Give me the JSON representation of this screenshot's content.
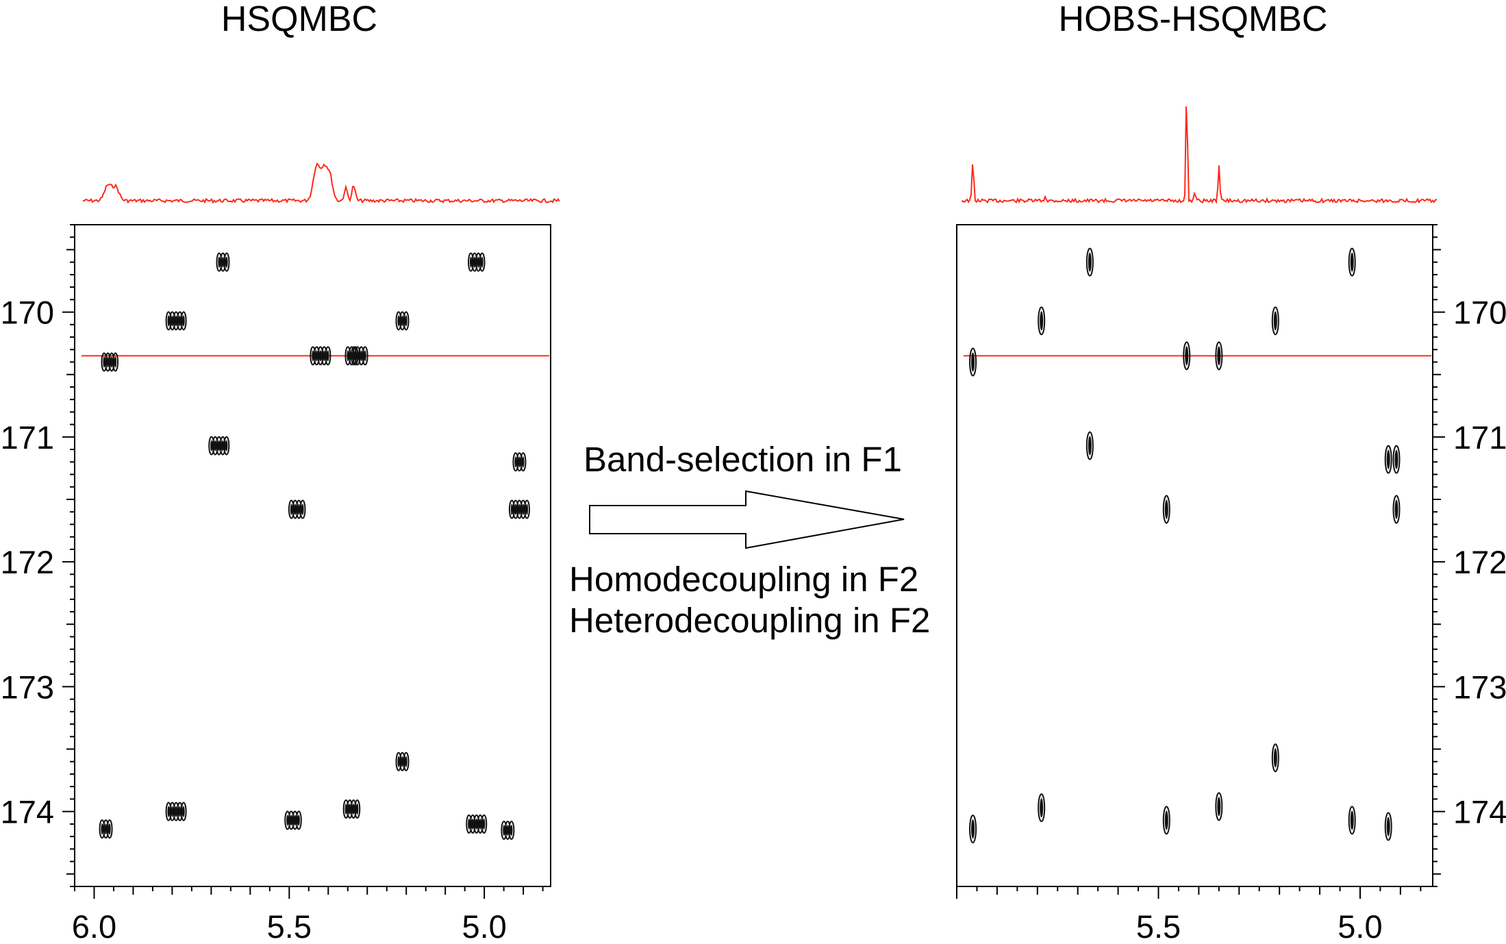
{
  "figure": {
    "left_title": "HSQMBC",
    "right_title": "HOBS-HSQMBC",
    "arrow_label_top": "Band-selection in F1",
    "arrow_label_bottom_1": "Homodecoupling in F2",
    "arrow_label_bottom_2": "Heterodecoupling in F2"
  },
  "colors": {
    "trace": "#ff2a1a",
    "peak": "#111111",
    "axis": "#000000",
    "background": "#ffffff"
  },
  "chart_data": [
    {
      "type": "scatter",
      "title": "HSQMBC",
      "xlabel": "",
      "ylabel": "",
      "xlim": [
        6.05,
        4.83
      ],
      "ylim": [
        169.3,
        174.6
      ],
      "x_ticks": [
        "6.0",
        "5.5",
        "5.0"
      ],
      "y_ticks": [
        "170",
        "171",
        "172",
        "173",
        "174"
      ],
      "slice_f1": 170.35,
      "peaks": [
        {
          "x": 5.67,
          "y": 169.6
        },
        {
          "x": 5.02,
          "y": 169.6
        },
        {
          "x": 5.79,
          "y": 170.07
        },
        {
          "x": 5.21,
          "y": 170.07
        },
        {
          "x": 5.96,
          "y": 170.4
        },
        {
          "x": 5.42,
          "y": 170.35
        },
        {
          "x": 5.34,
          "y": 170.35
        },
        {
          "x": 5.32,
          "y": 170.35
        },
        {
          "x": 5.68,
          "y": 171.07
        },
        {
          "x": 4.91,
          "y": 171.2
        },
        {
          "x": 5.48,
          "y": 171.58
        },
        {
          "x": 4.91,
          "y": 171.58
        },
        {
          "x": 5.21,
          "y": 173.6
        },
        {
          "x": 5.34,
          "y": 173.98
        },
        {
          "x": 5.79,
          "y": 174.0
        },
        {
          "x": 5.97,
          "y": 174.14
        },
        {
          "x": 5.49,
          "y": 174.07
        },
        {
          "x": 5.02,
          "y": 174.1
        },
        {
          "x": 4.94,
          "y": 174.15
        }
      ],
      "projection": "broad multiplets near 5.96, 5.42 and 5.34"
    },
    {
      "type": "scatter",
      "title": "HOBS-HSQMBC",
      "xlabel": "",
      "ylabel": "",
      "xlim": [
        6.0,
        4.82
      ],
      "ylim": [
        169.3,
        174.6
      ],
      "x_ticks": [
        "5.5",
        "5.0"
      ],
      "y_ticks": [
        "170",
        "171",
        "172",
        "173",
        "174"
      ],
      "slice_f1": 170.35,
      "peaks": [
        {
          "x": 5.67,
          "y": 169.6
        },
        {
          "x": 5.02,
          "y": 169.6
        },
        {
          "x": 5.79,
          "y": 170.07
        },
        {
          "x": 5.21,
          "y": 170.07
        },
        {
          "x": 5.96,
          "y": 170.4
        },
        {
          "x": 5.43,
          "y": 170.35
        },
        {
          "x": 5.35,
          "y": 170.35
        },
        {
          "x": 5.67,
          "y": 171.07
        },
        {
          "x": 4.93,
          "y": 171.18
        },
        {
          "x": 4.91,
          "y": 171.18
        },
        {
          "x": 5.48,
          "y": 171.58
        },
        {
          "x": 4.91,
          "y": 171.58
        },
        {
          "x": 5.21,
          "y": 173.57
        },
        {
          "x": 5.35,
          "y": 173.96
        },
        {
          "x": 5.79,
          "y": 173.97
        },
        {
          "x": 5.96,
          "y": 174.14
        },
        {
          "x": 5.48,
          "y": 174.07
        },
        {
          "x": 5.02,
          "y": 174.07
        },
        {
          "x": 4.93,
          "y": 174.12
        }
      ],
      "projection": "sharp singlets near 5.96, 5.43 and 5.35"
    }
  ]
}
